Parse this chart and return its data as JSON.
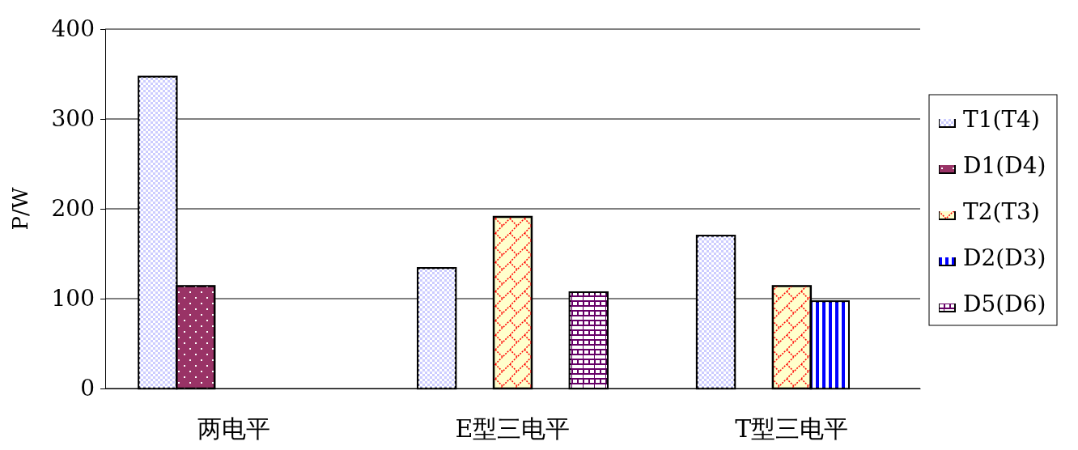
{
  "chart_data": {
    "type": "bar",
    "ylabel": "P/W",
    "categories": [
      "两电平",
      "E型三电平",
      "T型三电平"
    ],
    "series": [
      {
        "name": "T1(T4)",
        "color": "#ccccff",
        "values": [
          347,
          134,
          170
        ]
      },
      {
        "name": "D1(D4)",
        "color": "#993366",
        "values": [
          114,
          null,
          null
        ]
      },
      {
        "name": "T2(T3)",
        "color": "#ffffcc",
        "values": [
          null,
          191,
          114
        ]
      },
      {
        "name": "D2(D3)",
        "color": "#0000ff",
        "values": [
          null,
          null,
          97
        ]
      },
      {
        "name": "D5(D6)",
        "color": "#660066",
        "values": [
          null,
          107,
          null
        ]
      }
    ],
    "ylim": [
      0,
      400
    ],
    "yticks": [
      0,
      100,
      200,
      300,
      400
    ],
    "grid": "y",
    "legend": "right"
  }
}
